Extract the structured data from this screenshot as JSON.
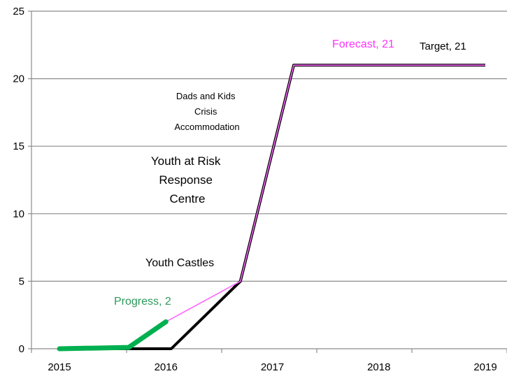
{
  "chart_data": {
    "type": "line",
    "xlim": [
      2015,
      2019
    ],
    "ylim": [
      0,
      25
    ],
    "x_ticks": [
      "2015",
      "2016",
      "2017",
      "2018",
      "2019"
    ],
    "y_ticks": [
      "0",
      "5",
      "10",
      "15",
      "20",
      "25"
    ],
    "grid": "horizontal",
    "series": [
      {
        "name": "Target",
        "color": "#000000",
        "points": [
          [
            2015,
            0
          ],
          [
            2016.05,
            0
          ],
          [
            2016.7,
            5
          ],
          [
            2017.2,
            21
          ],
          [
            2019,
            21
          ]
        ]
      },
      {
        "name": "Forecast",
        "color": "#ff66ff",
        "points": [
          [
            2016,
            2
          ],
          [
            2016.7,
            5
          ],
          [
            2017.2,
            21
          ],
          [
            2019,
            21
          ]
        ]
      },
      {
        "name": "Progress",
        "color": "#00b050",
        "points": [
          [
            2015,
            0
          ],
          [
            2015.65,
            0.1
          ],
          [
            2016,
            2
          ]
        ]
      }
    ],
    "annotations": {
      "target": "Target, 21",
      "forecast": "Forecast, 21",
      "progress": "Progress, 2",
      "youth_castles": "Youth Castles",
      "youth_at_risk": [
        "Youth at Risk",
        "Response",
        "Centre"
      ],
      "dads_and_kids": [
        "Dads and Kids",
        "Crisis",
        "Accommodation"
      ]
    }
  }
}
